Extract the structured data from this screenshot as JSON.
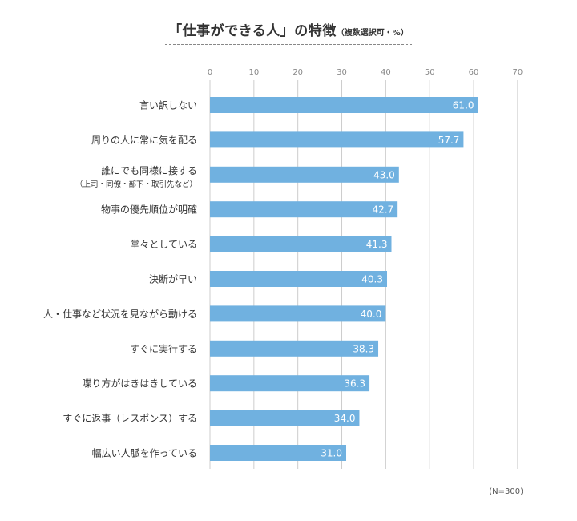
{
  "chart_data": {
    "type": "bar",
    "orientation": "horizontal",
    "title": "「仕事ができる人」の特徴",
    "subtitle": "（複数選択可・%）",
    "note": "(N=300)",
    "categories": [
      "言い訳しない",
      "周りの人に常に気を配る",
      "誰にでも同様に接する\n（上司・同僚・部下・取引先など）",
      "物事の優先順位が明確",
      "堂々としている",
      "決断が早い",
      "人・仕事など状況を見ながら動ける",
      "すぐに実行する",
      "喋り方がはきはきしている",
      "すぐに返事（レスポンス）する",
      "幅広い人脈を作っている"
    ],
    "values": [
      61.0,
      57.7,
      43.0,
      42.7,
      41.3,
      40.3,
      40.0,
      38.3,
      36.3,
      34.0,
      31.0
    ],
    "value_labels": [
      "61.0",
      "57.7",
      "43.0",
      "42.7",
      "41.3",
      "40.3",
      "40.0",
      "38.3",
      "36.3",
      "34.0",
      "31.0"
    ],
    "xlim": [
      0,
      70
    ],
    "xticks": [
      "0",
      "10",
      "20",
      "30",
      "40",
      "50",
      "60",
      "70"
    ],
    "grid": true,
    "colors": {
      "bar": "#70b1e0",
      "bar_label": "#ffffff",
      "grid": "#cccccc",
      "tick_label": "#888888",
      "text": "#333333"
    }
  }
}
